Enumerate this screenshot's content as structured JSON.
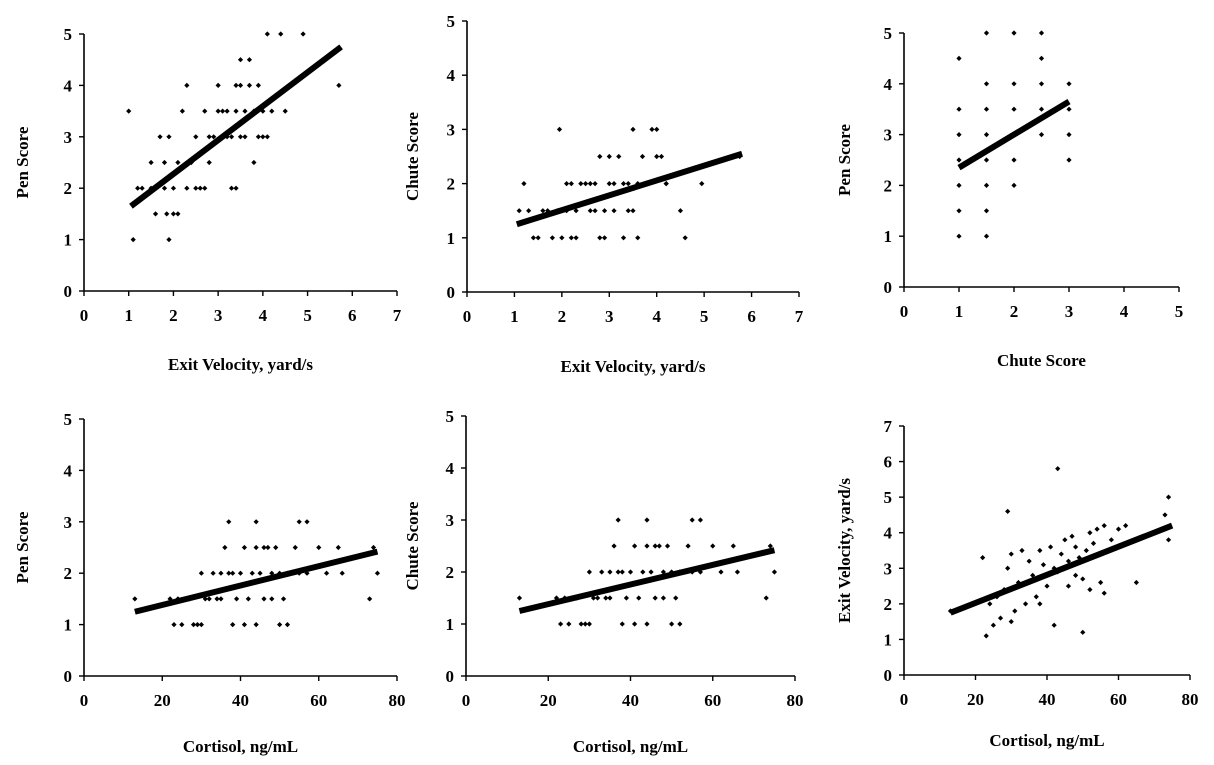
{
  "chart_data": [
    {
      "type": "scatter",
      "xlabel": "Exit Velocity, yard/s",
      "ylabel": "Pen Score",
      "xlim": [
        0,
        7
      ],
      "ylim": [
        0,
        5
      ],
      "xticks": [
        0,
        1,
        2,
        3,
        4,
        5,
        6,
        7
      ],
      "yticks": [
        0,
        1,
        2,
        3,
        4,
        5
      ],
      "trendline": {
        "x": [
          1.05,
          5.75
        ],
        "y": [
          1.65,
          4.75
        ]
      },
      "points": [
        [
          1.0,
          3.5
        ],
        [
          1.1,
          1.0
        ],
        [
          1.2,
          2.0
        ],
        [
          1.3,
          2.0
        ],
        [
          1.5,
          2.5
        ],
        [
          1.5,
          2.0
        ],
        [
          1.6,
          1.5
        ],
        [
          1.7,
          3.0
        ],
        [
          1.8,
          2.5
        ],
        [
          1.8,
          2.0
        ],
        [
          1.85,
          1.5
        ],
        [
          1.9,
          3.0
        ],
        [
          1.9,
          1.0
        ],
        [
          2.0,
          1.5
        ],
        [
          2.0,
          2.0
        ],
        [
          2.1,
          2.5
        ],
        [
          2.1,
          1.5
        ],
        [
          2.2,
          3.5
        ],
        [
          2.3,
          4.0
        ],
        [
          2.3,
          2.0
        ],
        [
          2.4,
          2.5
        ],
        [
          2.5,
          2.0
        ],
        [
          2.5,
          3.0
        ],
        [
          2.6,
          2.0
        ],
        [
          2.7,
          2.0
        ],
        [
          2.7,
          3.5
        ],
        [
          2.8,
          2.5
        ],
        [
          2.8,
          3.0
        ],
        [
          2.9,
          3.0
        ],
        [
          3.0,
          3.5
        ],
        [
          3.0,
          4.0
        ],
        [
          3.1,
          3.0
        ],
        [
          3.1,
          3.5
        ],
        [
          3.2,
          3.0
        ],
        [
          3.2,
          3.5
        ],
        [
          3.3,
          2.0
        ],
        [
          3.3,
          3.0
        ],
        [
          3.4,
          2.0
        ],
        [
          3.4,
          3.5
        ],
        [
          3.4,
          4.0
        ],
        [
          3.5,
          3.0
        ],
        [
          3.5,
          4.0
        ],
        [
          3.5,
          4.5
        ],
        [
          3.6,
          3.0
        ],
        [
          3.6,
          3.5
        ],
        [
          3.7,
          4.0
        ],
        [
          3.7,
          4.5
        ],
        [
          3.8,
          3.5
        ],
        [
          3.8,
          2.5
        ],
        [
          3.9,
          3.0
        ],
        [
          3.9,
          4.0
        ],
        [
          4.0,
          3.0
        ],
        [
          4.0,
          3.5
        ],
        [
          4.1,
          5.0
        ],
        [
          4.1,
          3.0
        ],
        [
          4.2,
          3.5
        ],
        [
          4.4,
          5.0
        ],
        [
          4.5,
          3.5
        ],
        [
          4.9,
          5.0
        ],
        [
          5.7,
          4.0
        ]
      ]
    },
    {
      "type": "scatter",
      "xlabel": "Exit Velocity, yard/s",
      "ylabel": "Chute Score",
      "xlim": [
        0,
        7
      ],
      "ylim": [
        0,
        5
      ],
      "xticks": [
        0,
        1,
        2,
        3,
        4,
        5,
        6,
        7
      ],
      "yticks": [
        0,
        1,
        2,
        3,
        4,
        5
      ],
      "trendline": {
        "x": [
          1.05,
          5.8
        ],
        "y": [
          1.25,
          2.55
        ]
      },
      "points": [
        [
          1.1,
          1.5
        ],
        [
          1.2,
          2.0
        ],
        [
          1.3,
          1.5
        ],
        [
          1.4,
          1.0
        ],
        [
          1.5,
          1.0
        ],
        [
          1.6,
          1.5
        ],
        [
          1.7,
          1.5
        ],
        [
          1.8,
          1.0
        ],
        [
          1.9,
          1.5
        ],
        [
          1.95,
          3.0
        ],
        [
          2.0,
          1.0
        ],
        [
          2.1,
          2.0
        ],
        [
          2.1,
          1.5
        ],
        [
          2.2,
          1.0
        ],
        [
          2.2,
          2.0
        ],
        [
          2.3,
          1.5
        ],
        [
          2.3,
          1.0
        ],
        [
          2.4,
          2.0
        ],
        [
          2.5,
          2.0
        ],
        [
          2.6,
          2.0
        ],
        [
          2.6,
          1.5
        ],
        [
          2.7,
          1.5
        ],
        [
          2.7,
          2.0
        ],
        [
          2.8,
          2.5
        ],
        [
          2.8,
          1.0
        ],
        [
          2.9,
          1.5
        ],
        [
          2.9,
          1.0
        ],
        [
          3.0,
          2.5
        ],
        [
          3.0,
          2.0
        ],
        [
          3.1,
          1.5
        ],
        [
          3.1,
          2.0
        ],
        [
          3.2,
          2.5
        ],
        [
          3.3,
          1.0
        ],
        [
          3.3,
          2.0
        ],
        [
          3.4,
          1.5
        ],
        [
          3.4,
          2.0
        ],
        [
          3.5,
          3.0
        ],
        [
          3.5,
          1.5
        ],
        [
          3.6,
          2.0
        ],
        [
          3.6,
          1.0
        ],
        [
          3.7,
          2.5
        ],
        [
          3.8,
          2.0
        ],
        [
          3.9,
          3.0
        ],
        [
          4.0,
          2.5
        ],
        [
          4.0,
          3.0
        ],
        [
          4.1,
          2.5
        ],
        [
          4.2,
          2.0
        ],
        [
          4.2,
          2.0
        ],
        [
          4.5,
          1.5
        ],
        [
          4.6,
          1.0
        ],
        [
          4.95,
          2.0
        ],
        [
          5.75,
          2.5
        ]
      ]
    },
    {
      "type": "scatter",
      "xlabel": "Chute Score",
      "ylabel": "Pen Score",
      "xlim": [
        0,
        5
      ],
      "ylim": [
        0,
        5
      ],
      "xticks": [
        0,
        1,
        2,
        3,
        4,
        5
      ],
      "yticks": [
        0,
        1,
        2,
        3,
        4,
        5
      ],
      "trendline": {
        "x": [
          1.0,
          3.0
        ],
        "y": [
          2.35,
          3.65
        ]
      },
      "points": [
        [
          1.0,
          1.0
        ],
        [
          1.0,
          1.5
        ],
        [
          1.0,
          2.0
        ],
        [
          1.0,
          2.5
        ],
        [
          1.0,
          3.0
        ],
        [
          1.0,
          3.5
        ],
        [
          1.0,
          4.5
        ],
        [
          1.5,
          1.0
        ],
        [
          1.5,
          1.5
        ],
        [
          1.5,
          2.0
        ],
        [
          1.5,
          2.5
        ],
        [
          1.5,
          3.0
        ],
        [
          1.5,
          3.5
        ],
        [
          1.5,
          4.0
        ],
        [
          1.5,
          5.0
        ],
        [
          2.0,
          2.0
        ],
        [
          2.0,
          2.5
        ],
        [
          2.0,
          3.5
        ],
        [
          2.0,
          4.0
        ],
        [
          2.0,
          5.0
        ],
        [
          2.5,
          3.0
        ],
        [
          2.5,
          3.5
        ],
        [
          2.5,
          4.0
        ],
        [
          2.5,
          4.5
        ],
        [
          2.5,
          5.0
        ],
        [
          3.0,
          2.5
        ],
        [
          3.0,
          3.0
        ],
        [
          3.0,
          3.5
        ],
        [
          3.0,
          4.0
        ]
      ]
    },
    {
      "type": "scatter",
      "xlabel": "Cortisol, ng/mL",
      "ylabel": "Pen Score",
      "xlim": [
        0,
        80
      ],
      "ylim": [
        0,
        5
      ],
      "xticks": [
        0,
        20,
        40,
        60,
        80
      ],
      "yticks": [
        0,
        1,
        2,
        3,
        4,
        5
      ],
      "trendline": {
        "x": [
          13,
          75
        ],
        "y": [
          1.25,
          2.42
        ]
      },
      "points": [
        [
          13,
          1.5
        ],
        [
          22,
          1.5
        ],
        [
          23,
          1.0
        ],
        [
          24,
          1.5
        ],
        [
          25,
          1.0
        ],
        [
          26,
          1.5
        ],
        [
          27,
          1.5
        ],
        [
          28,
          1.0
        ],
        [
          29,
          1.0
        ],
        [
          30,
          1.0
        ],
        [
          30,
          2.0
        ],
        [
          31,
          1.5
        ],
        [
          32,
          1.5
        ],
        [
          33,
          2.0
        ],
        [
          34,
          1.5
        ],
        [
          35,
          1.5
        ],
        [
          35,
          2.0
        ],
        [
          36,
          2.5
        ],
        [
          37,
          3.0
        ],
        [
          37,
          2.0
        ],
        [
          38,
          1.0
        ],
        [
          38,
          2.0
        ],
        [
          39,
          1.5
        ],
        [
          40,
          2.0
        ],
        [
          41,
          2.5
        ],
        [
          41,
          1.0
        ],
        [
          42,
          1.5
        ],
        [
          43,
          2.0
        ],
        [
          44,
          1.0
        ],
        [
          44,
          2.5
        ],
        [
          44,
          3.0
        ],
        [
          45,
          2.0
        ],
        [
          46,
          2.5
        ],
        [
          46,
          1.5
        ],
        [
          47,
          2.5
        ],
        [
          48,
          2.0
        ],
        [
          48,
          1.5
        ],
        [
          49,
          2.5
        ],
        [
          50,
          1.0
        ],
        [
          50,
          2.0
        ],
        [
          51,
          1.5
        ],
        [
          52,
          2.0
        ],
        [
          52,
          1.0
        ],
        [
          53,
          2.0
        ],
        [
          54,
          2.5
        ],
        [
          55,
          3.0
        ],
        [
          55,
          2.0
        ],
        [
          57,
          3.0
        ],
        [
          57,
          2.0
        ],
        [
          60,
          2.5
        ],
        [
          62,
          2.0
        ],
        [
          65,
          2.5
        ],
        [
          66,
          2.0
        ],
        [
          73,
          1.5
        ],
        [
          74,
          2.5
        ],
        [
          75,
          2.0
        ]
      ]
    },
    {
      "type": "scatter",
      "xlabel": "Cortisol, ng/mL",
      "ylabel": "Chute Score",
      "xlim": [
        0,
        80
      ],
      "ylim": [
        0,
        5
      ],
      "xticks": [
        0,
        20,
        40,
        60,
        80
      ],
      "yticks": [
        0,
        1,
        2,
        3,
        4,
        5
      ],
      "trendline": {
        "x": [
          13,
          75
        ],
        "y": [
          1.25,
          2.42
        ]
      },
      "points": [
        [
          13,
          1.5
        ],
        [
          22,
          1.5
        ],
        [
          23,
          1.0
        ],
        [
          24,
          1.5
        ],
        [
          25,
          1.0
        ],
        [
          26,
          1.5
        ],
        [
          27,
          1.5
        ],
        [
          28,
          1.0
        ],
        [
          29,
          1.0
        ],
        [
          30,
          1.0
        ],
        [
          30,
          2.0
        ],
        [
          31,
          1.5
        ],
        [
          32,
          1.5
        ],
        [
          33,
          2.0
        ],
        [
          34,
          1.5
        ],
        [
          35,
          1.5
        ],
        [
          35,
          2.0
        ],
        [
          36,
          2.5
        ],
        [
          37,
          3.0
        ],
        [
          37,
          2.0
        ],
        [
          38,
          1.0
        ],
        [
          38,
          2.0
        ],
        [
          39,
          1.5
        ],
        [
          40,
          2.0
        ],
        [
          41,
          2.5
        ],
        [
          41,
          1.0
        ],
        [
          42,
          1.5
        ],
        [
          43,
          2.0
        ],
        [
          44,
          1.0
        ],
        [
          44,
          2.5
        ],
        [
          44,
          3.0
        ],
        [
          45,
          2.0
        ],
        [
          46,
          2.5
        ],
        [
          46,
          1.5
        ],
        [
          47,
          2.5
        ],
        [
          48,
          2.0
        ],
        [
          48,
          1.5
        ],
        [
          49,
          2.5
        ],
        [
          50,
          1.0
        ],
        [
          50,
          2.0
        ],
        [
          51,
          1.5
        ],
        [
          52,
          2.0
        ],
        [
          52,
          1.0
        ],
        [
          53,
          2.0
        ],
        [
          54,
          2.5
        ],
        [
          55,
          3.0
        ],
        [
          55,
          2.0
        ],
        [
          57,
          3.0
        ],
        [
          57,
          2.0
        ],
        [
          60,
          2.5
        ],
        [
          62,
          2.0
        ],
        [
          65,
          2.5
        ],
        [
          66,
          2.0
        ],
        [
          73,
          1.5
        ],
        [
          74,
          2.5
        ],
        [
          75,
          2.0
        ]
      ]
    },
    {
      "type": "scatter",
      "xlabel": "Cortisol, ng/mL",
      "ylabel": "Exit Velocity, yard/s",
      "xlim": [
        0,
        80
      ],
      "ylim": [
        0,
        7
      ],
      "xticks": [
        0,
        20,
        40,
        60,
        80
      ],
      "yticks": [
        0,
        1,
        2,
        3,
        4,
        5,
        6,
        7
      ],
      "trendline": {
        "x": [
          13,
          75
        ],
        "y": [
          1.75,
          4.2
        ]
      },
      "points": [
        [
          13,
          1.8
        ],
        [
          22,
          3.3
        ],
        [
          23,
          1.1
        ],
        [
          24,
          2.0
        ],
        [
          25,
          1.4
        ],
        [
          26,
          2.2
        ],
        [
          27,
          1.6
        ],
        [
          28,
          2.4
        ],
        [
          29,
          3.0
        ],
        [
          29,
          4.6
        ],
        [
          30,
          1.5
        ],
        [
          30,
          3.4
        ],
        [
          31,
          1.8
        ],
        [
          32,
          2.6
        ],
        [
          33,
          3.5
        ],
        [
          34,
          2.0
        ],
        [
          35,
          3.2
        ],
        [
          36,
          2.8
        ],
        [
          37,
          2.2
        ],
        [
          38,
          3.5
        ],
        [
          38,
          2.0
        ],
        [
          39,
          3.1
        ],
        [
          40,
          2.5
        ],
        [
          41,
          3.6
        ],
        [
          42,
          1.4
        ],
        [
          42,
          3.0
        ],
        [
          43,
          5.8
        ],
        [
          43,
          2.9
        ],
        [
          44,
          3.4
        ],
        [
          45,
          3.8
        ],
        [
          46,
          2.5
        ],
        [
          46,
          3.2
        ],
        [
          47,
          3.9
        ],
        [
          48,
          2.8
        ],
        [
          48,
          3.6
        ],
        [
          49,
          3.3
        ],
        [
          50,
          1.2
        ],
        [
          50,
          2.7
        ],
        [
          51,
          3.5
        ],
        [
          52,
          4.0
        ],
        [
          52,
          2.4
        ],
        [
          53,
          3.7
        ],
        [
          54,
          4.1
        ],
        [
          55,
          2.6
        ],
        [
          56,
          4.2
        ],
        [
          56,
          2.3
        ],
        [
          58,
          3.8
        ],
        [
          60,
          4.1
        ],
        [
          62,
          4.2
        ],
        [
          65,
          2.6
        ],
        [
          73,
          4.5
        ],
        [
          74,
          3.8
        ],
        [
          74,
          5.0
        ]
      ]
    }
  ]
}
